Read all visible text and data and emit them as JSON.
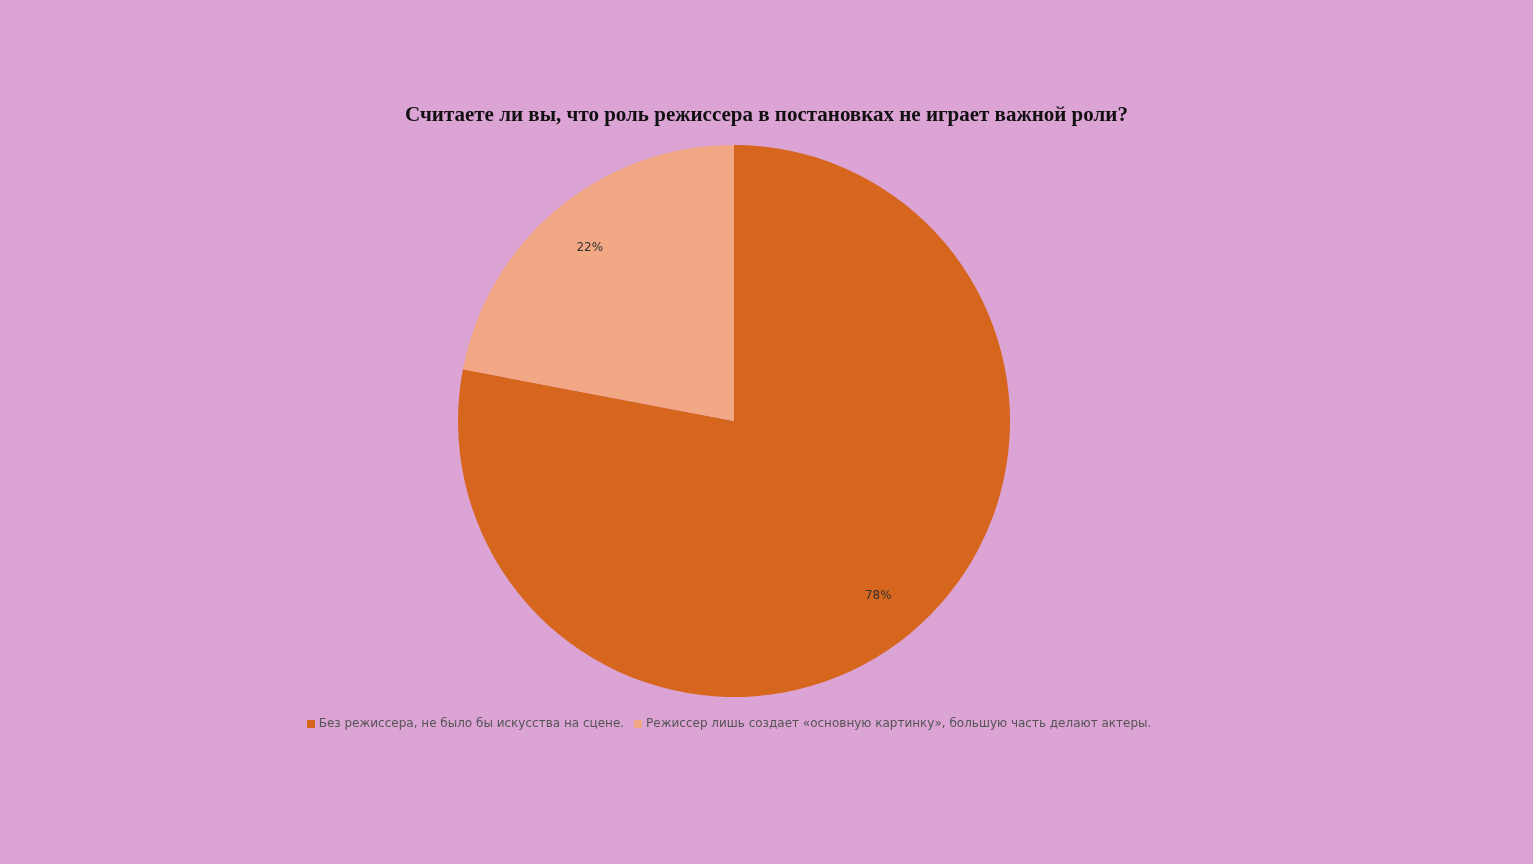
{
  "chart_data": {
    "type": "pie",
    "title": "Считаете ли вы, что роль режиссера в постановках не играет важной роли?",
    "categories": [
      "Без режиссера, не было  бы искусства на сцене.",
      "Режиссер лишь создает «основную  картинку», большую  часть делают актеры."
    ],
    "values": [
      78,
      22
    ],
    "colors": [
      "#d6661e",
      "#f2a785"
    ],
    "value_labels": [
      "78%",
      "22%"
    ],
    "legend": "bottom"
  }
}
